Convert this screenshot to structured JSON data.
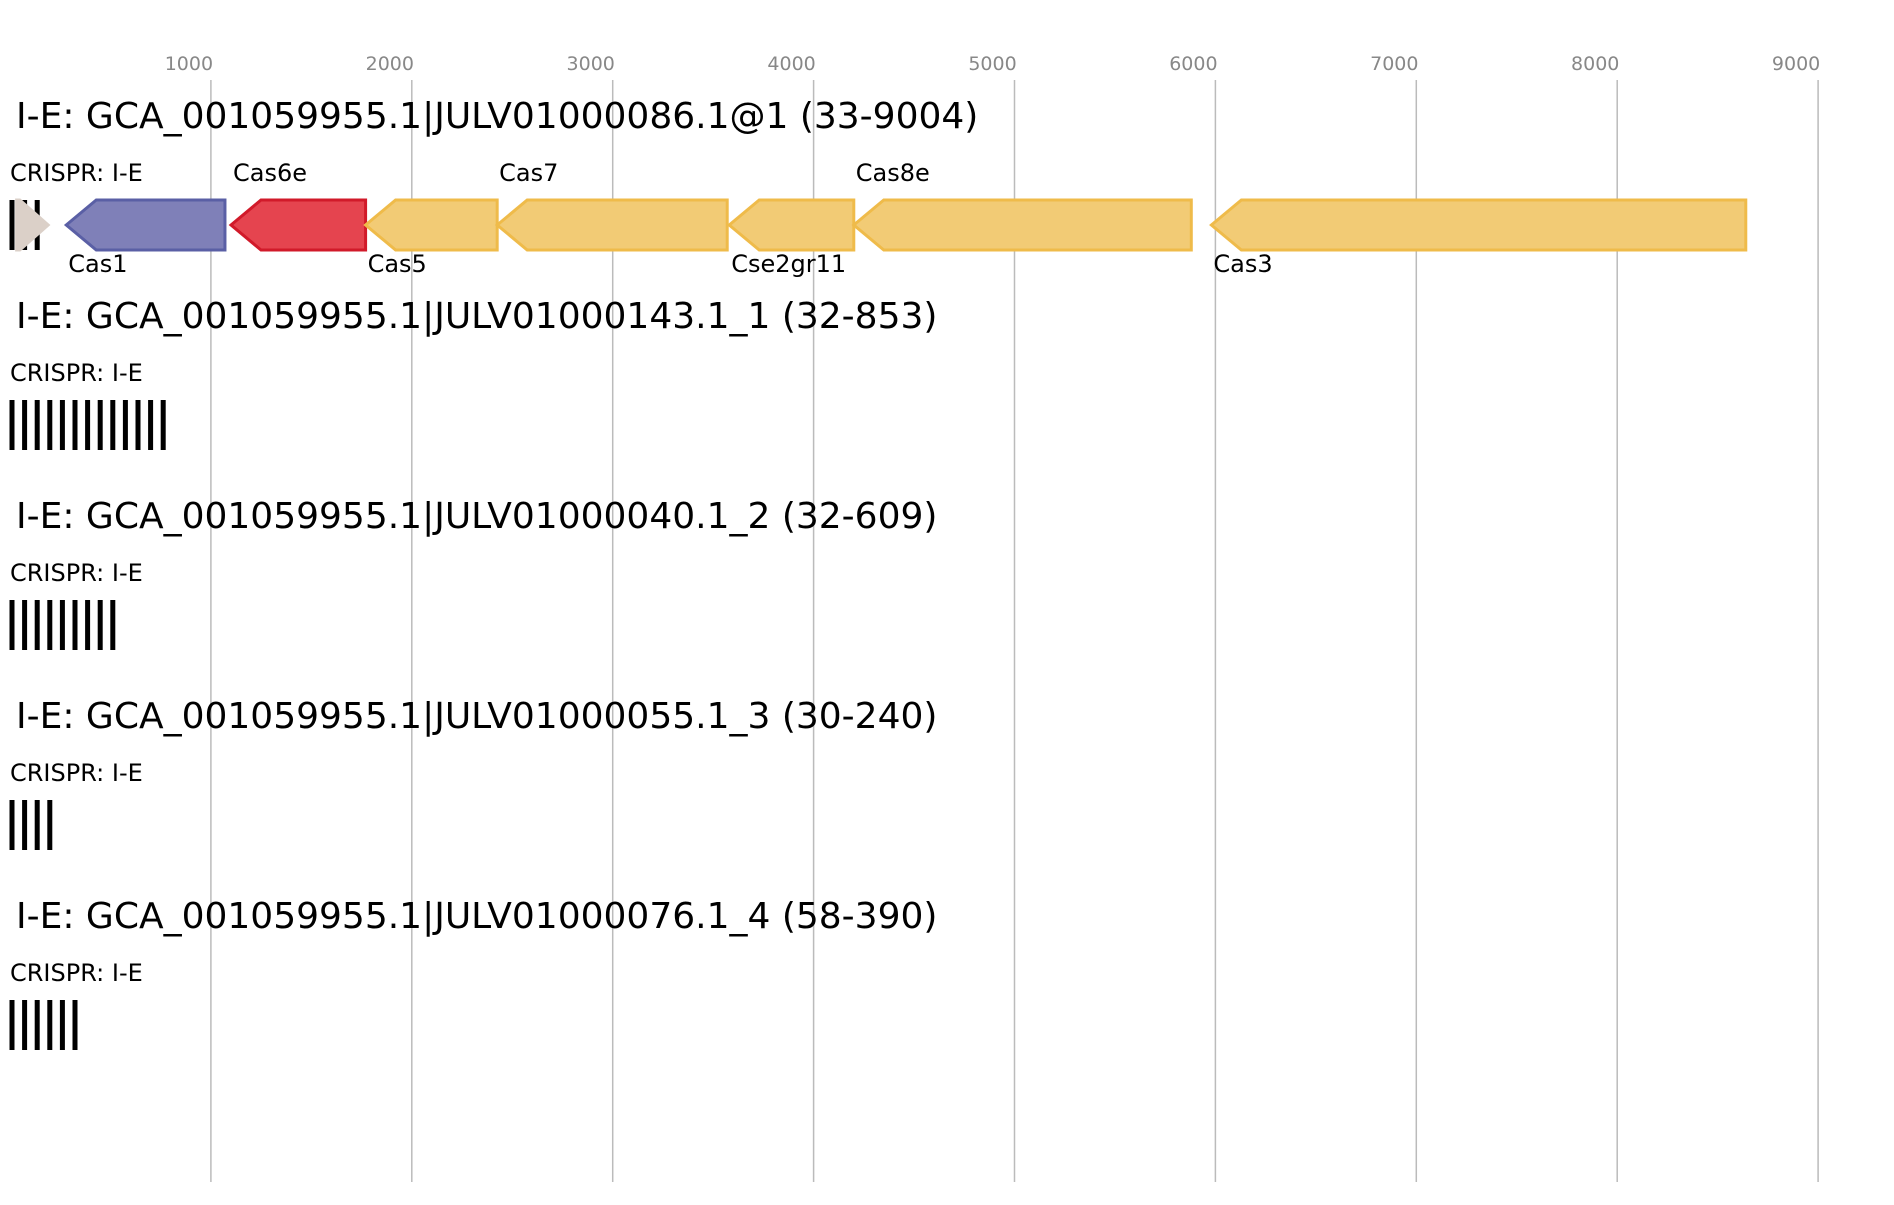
{
  "axis": {
    "ticks": [
      1000,
      2000,
      3000,
      4000,
      5000,
      6000,
      7000,
      8000,
      9000
    ]
  },
  "colors": {
    "Cas1": "#7f80b8",
    "Cas1_stroke": "#5a5fa5",
    "Cas6e": "#e5444f",
    "Cas6e_stroke": "#d11a2a",
    "Cas_yellow": "#f2cb75",
    "Cas_yellow_stroke": "#efbb4a",
    "unknown": "#dbd0c8",
    "crispr": "#000000"
  },
  "tracks": [
    {
      "title": "I-E: GCA_001059955.1|JULV01000086.1@1 (33-9004)",
      "crispr_label": "CRISPR: I-E",
      "crispr_bars": 3,
      "genes": [
        {
          "name": "",
          "start": 33,
          "end": 190,
          "strand": "+",
          "color_key": "unknown",
          "label_pos": "top"
        },
        {
          "name": "Cas1",
          "start": 280,
          "end": 1070,
          "strand": "-",
          "color_key": "Cas1",
          "label_pos": "bottom"
        },
        {
          "name": "Cas6e",
          "start": 1100,
          "end": 1770,
          "strand": "-",
          "color_key": "Cas6e",
          "label_pos": "top"
        },
        {
          "name": "Cas5",
          "start": 1770,
          "end": 2425,
          "strand": "-",
          "color_key": "Cas_yellow",
          "label_pos": "bottom"
        },
        {
          "name": "Cas7",
          "start": 2425,
          "end": 3570,
          "strand": "-",
          "color_key": "Cas_yellow",
          "label_pos": "top"
        },
        {
          "name": "Cse2gr11",
          "start": 3580,
          "end": 4200,
          "strand": "-",
          "color_key": "Cas_yellow",
          "label_pos": "bottom"
        },
        {
          "name": "Cas8e",
          "start": 4200,
          "end": 5880,
          "strand": "-",
          "color_key": "Cas_yellow",
          "label_pos": "top"
        },
        {
          "name": "Cas3",
          "start": 5980,
          "end": 8640,
          "strand": "-",
          "color_key": "Cas_yellow",
          "label_pos": "bottom"
        }
      ]
    },
    {
      "title": "I-E: GCA_001059955.1|JULV01000143.1_1 (32-853)",
      "crispr_label": "CRISPR: I-E",
      "crispr_bars": 13,
      "genes": []
    },
    {
      "title": "I-E: GCA_001059955.1|JULV01000040.1_2 (32-609)",
      "crispr_label": "CRISPR: I-E",
      "crispr_bars": 9,
      "genes": []
    },
    {
      "title": "I-E: GCA_001059955.1|JULV01000055.1_3 (30-240)",
      "crispr_label": "CRISPR: I-E",
      "crispr_bars": 4,
      "genes": []
    },
    {
      "title": "I-E: GCA_001059955.1|JULV01000076.1_4 (58-390)",
      "crispr_label": "CRISPR: I-E",
      "crispr_bars": 6,
      "genes": []
    }
  ]
}
